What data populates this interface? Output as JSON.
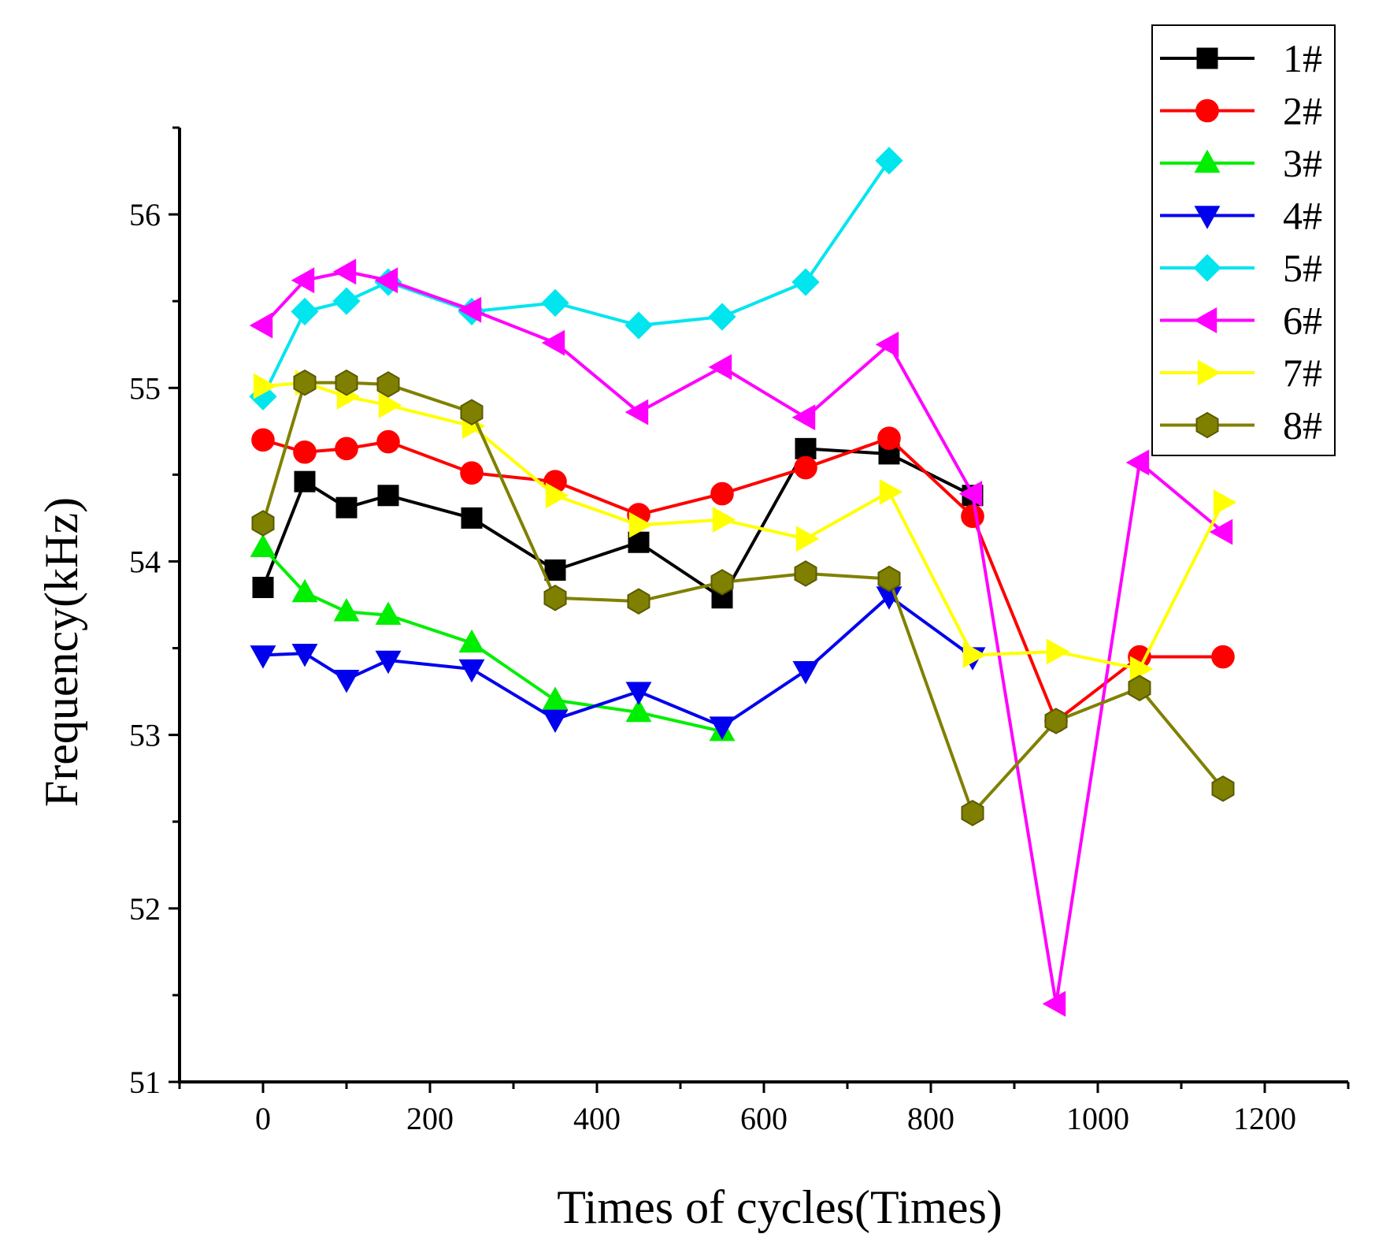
{
  "chart_data": {
    "type": "line",
    "title": "",
    "xlabel": "Times of cycles(Times)",
    "ylabel": "Frequency(kHz)",
    "xlim": [
      -100,
      1300
    ],
    "ylim": [
      51,
      56.5
    ],
    "xticks": [
      0,
      200,
      400,
      600,
      800,
      1000,
      1200
    ],
    "yticks": [
      51,
      52,
      53,
      54,
      55,
      56
    ],
    "grid": false,
    "legend_position": "top-right",
    "series": [
      {
        "name": "1#",
        "color": "#000000",
        "marker": "square",
        "x": [
          0,
          50,
          100,
          150,
          250,
          350,
          450,
          550,
          650,
          750,
          850
        ],
        "y": [
          53.85,
          54.46,
          54.31,
          54.38,
          54.25,
          53.95,
          54.11,
          53.79,
          54.65,
          54.62,
          54.38
        ]
      },
      {
        "name": "2#",
        "color": "#ff0000",
        "marker": "circle",
        "x": [
          0,
          50,
          100,
          150,
          250,
          350,
          450,
          550,
          650,
          750,
          850,
          950,
          1050,
          1150
        ],
        "y": [
          54.7,
          54.63,
          54.65,
          54.69,
          54.51,
          54.46,
          54.27,
          54.39,
          54.54,
          54.71,
          54.26,
          53.08,
          53.45,
          53.45
        ]
      },
      {
        "name": "3#",
        "color": "#00ee00",
        "marker": "triangle-up",
        "x": [
          0,
          50,
          100,
          150,
          250,
          350,
          450,
          550
        ],
        "y": [
          54.08,
          53.82,
          53.71,
          53.69,
          53.53,
          53.2,
          53.13,
          53.02
        ]
      },
      {
        "name": "4#",
        "color": "#0000ee",
        "marker": "triangle-down",
        "x": [
          0,
          50,
          100,
          150,
          250,
          350,
          450,
          550,
          650,
          750,
          850
        ],
        "y": [
          53.46,
          53.47,
          53.32,
          53.43,
          53.38,
          53.09,
          53.25,
          53.05,
          53.37,
          53.8,
          53.45
        ]
      },
      {
        "name": "5#",
        "color": "#00e5ee",
        "marker": "diamond",
        "x": [
          0,
          50,
          100,
          150,
          250,
          350,
          450,
          550,
          650,
          750
        ],
        "y": [
          54.95,
          55.44,
          55.5,
          55.61,
          55.44,
          55.49,
          55.36,
          55.41,
          55.61,
          56.31
        ]
      },
      {
        "name": "6#",
        "color": "#ff00ff",
        "marker": "triangle-left",
        "x": [
          0,
          50,
          100,
          150,
          250,
          350,
          450,
          550,
          650,
          750,
          850,
          950,
          1050,
          1150
        ],
        "y": [
          55.36,
          55.62,
          55.67,
          55.62,
          55.45,
          55.26,
          54.86,
          55.12,
          54.83,
          55.25,
          54.39,
          51.45,
          54.57,
          54.17
        ]
      },
      {
        "name": "7#",
        "color": "#ffff00",
        "marker": "triangle-right",
        "x": [
          0,
          50,
          100,
          150,
          250,
          350,
          450,
          550,
          650,
          750,
          850,
          950,
          1050,
          1150
        ],
        "y": [
          55.01,
          55.03,
          54.95,
          54.9,
          54.78,
          54.38,
          54.21,
          54.24,
          54.13,
          54.4,
          53.46,
          53.48,
          53.38,
          54.34
        ]
      },
      {
        "name": "8#",
        "color": "#808000",
        "marker": "hexagon",
        "x": [
          0,
          50,
          100,
          150,
          250,
          350,
          450,
          550,
          650,
          750,
          850,
          950,
          1050,
          1150
        ],
        "y": [
          54.22,
          55.03,
          55.03,
          55.02,
          54.86,
          53.79,
          53.77,
          53.88,
          53.93,
          53.9,
          52.55,
          53.08,
          53.27,
          52.69
        ]
      }
    ]
  }
}
